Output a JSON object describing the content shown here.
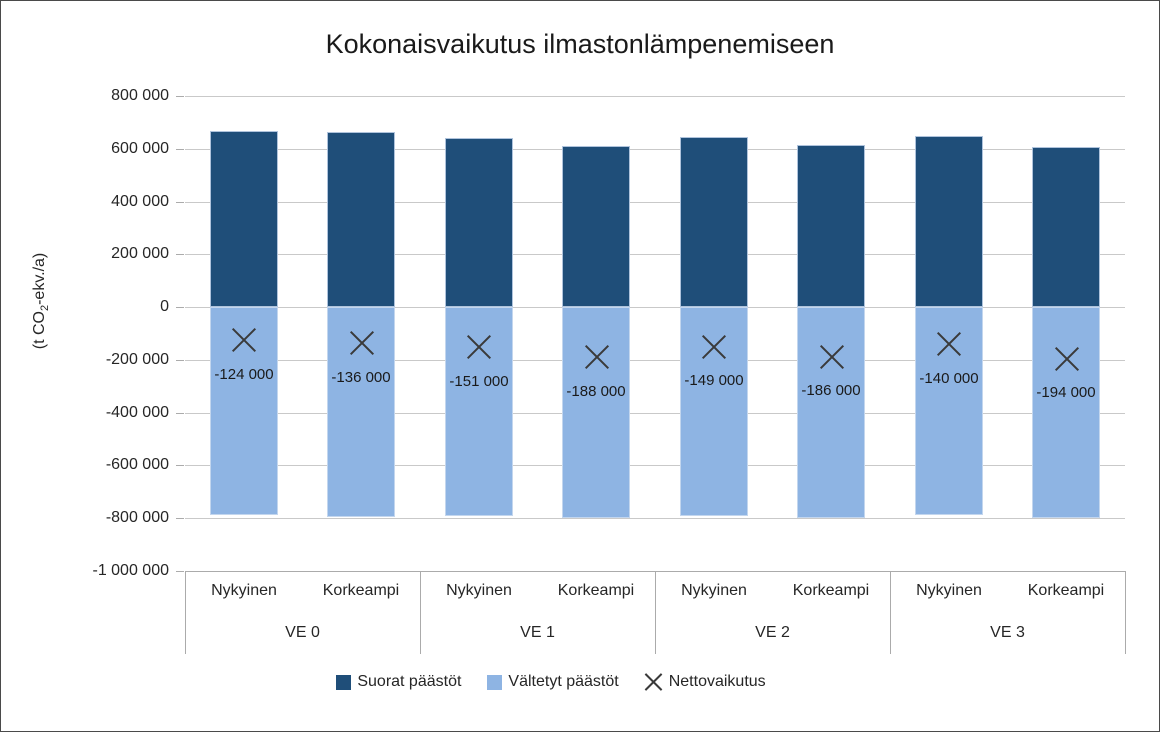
{
  "frame": {
    "background": "#FFFFFF",
    "border_color": "#4A4A4A",
    "gridline_color": "#C9C9C9",
    "axis_color": "#ABABAB"
  },
  "chart_data": {
    "type": "bar",
    "title": "Kokonaisvaikutus ilmastonlämpenemiseen",
    "ylabel": {
      "pre": "(t CO",
      "sub": "2",
      "post": "-ekv./a)"
    },
    "ylim": [
      -1000000,
      800000
    ],
    "grid": true,
    "legend_position": "bottom",
    "y_ticks": [
      {
        "value": 800000,
        "label": "800 000"
      },
      {
        "value": 600000,
        "label": "600 000"
      },
      {
        "value": 400000,
        "label": "400 000"
      },
      {
        "value": 200000,
        "label": "200 000"
      },
      {
        "value": 0,
        "label": "0"
      },
      {
        "value": -200000,
        "label": "-200 000"
      },
      {
        "value": -400000,
        "label": "-400 000"
      },
      {
        "value": -600000,
        "label": "-600 000"
      },
      {
        "value": -800000,
        "label": "-800 000"
      },
      {
        "value": -1000000,
        "label": "-1 000 000"
      }
    ],
    "groups": [
      {
        "label": "VE 0"
      },
      {
        "label": "VE 1"
      },
      {
        "label": "VE 2"
      },
      {
        "label": "VE 3"
      }
    ],
    "sub_categories": [
      "Nykyinen",
      "Korkeampi"
    ],
    "series": [
      {
        "name": "Suorat päästöt",
        "type": "bar",
        "color": "#1F4E79",
        "values": [
          666000,
          662000,
          641000,
          612000,
          645000,
          614000,
          650000,
          606000
        ]
      },
      {
        "name": "Vältetyt päästöt",
        "type": "bar",
        "color": "#8EB4E3",
        "values": [
          -790000,
          -798000,
          -792000,
          -800000,
          -794000,
          -800000,
          -790000,
          -800000
        ]
      },
      {
        "name": "Nettovaikutus",
        "type": "marker-x",
        "color": "#3A3A3A",
        "values": [
          -124000,
          -136000,
          -151000,
          -188000,
          -149000,
          -186000,
          -140000,
          -194000
        ],
        "labels": [
          "-124 000",
          "-136 000",
          "-151 000",
          "-188 000",
          "-149 000",
          "-186 000",
          "-140 000",
          "-194 000"
        ]
      }
    ]
  }
}
